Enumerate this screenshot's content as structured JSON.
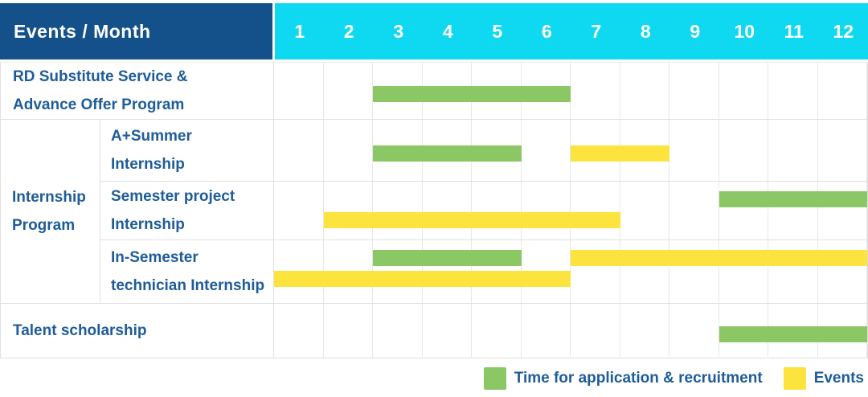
{
  "colors": {
    "header_bg": "#14508A",
    "months_bg": "#0FD9F0",
    "recruitment_green": "#8CC765",
    "events_yellow": "#FDE33D",
    "label_text": "#1E5C99",
    "grid_line": "#E7E7E7",
    "row_line": "#E0E0E0"
  },
  "header": {
    "corner_label": "Events / Month"
  },
  "chart_data": {
    "type": "gantt",
    "title": "Events / Month",
    "x_unit": "month",
    "x_range": [
      1,
      12
    ],
    "months": [
      "1",
      "2",
      "3",
      "4",
      "5",
      "6",
      "7",
      "8",
      "9",
      "10",
      "11",
      "12"
    ],
    "grid": true,
    "legend_position": "bottom-right",
    "rows": [
      {
        "label": "RD Substitute Service & Advance Offer Program",
        "lines": [
          "RD Substitute Service &",
          "Advance Offer Program"
        ],
        "group": "",
        "bars": [
          {
            "kind": "recruitment",
            "start_month": 3,
            "end_month": 6,
            "line": 1
          }
        ]
      },
      {
        "label": "A+Summer Internship",
        "lines": [
          "A+Summer",
          "Internship"
        ],
        "group": "Internship Program",
        "group_lines": [
          "Internship",
          "Program"
        ],
        "bars": [
          {
            "kind": "recruitment",
            "start_month": 3,
            "end_month": 5,
            "line": 1
          },
          {
            "kind": "events",
            "start_month": 7,
            "end_month": 8,
            "line": 1
          }
        ]
      },
      {
        "label": "Semester project Internship",
        "lines": [
          "Semester project",
          "Internship"
        ],
        "group": "Internship Program",
        "bars": [
          {
            "kind": "recruitment",
            "start_month": 10,
            "end_month": 12,
            "line": 1
          },
          {
            "kind": "events",
            "start_month": 2,
            "end_month": 7,
            "line": 2
          }
        ]
      },
      {
        "label": "In-Semester technician Internship",
        "lines": [
          "In-Semester",
          "technician Internship"
        ],
        "group": "Internship Program",
        "bars": [
          {
            "kind": "recruitment",
            "start_month": 3,
            "end_month": 5,
            "line": 1
          },
          {
            "kind": "events",
            "start_month": 7,
            "end_month": 12,
            "line": 1
          },
          {
            "kind": "events",
            "start_month": 1,
            "end_month": 6,
            "line": 2
          }
        ]
      },
      {
        "label": "Talent scholarship",
        "lines": [
          "Talent scholarship"
        ],
        "group": "",
        "bars": [
          {
            "kind": "recruitment",
            "start_month": 10,
            "end_month": 12,
            "line": 1
          }
        ]
      }
    ],
    "legend": [
      {
        "kind": "recruitment",
        "label": "Time for application & recruitment",
        "color": "#8CC765"
      },
      {
        "kind": "events",
        "label": "Events",
        "color": "#FDE33D"
      }
    ]
  }
}
